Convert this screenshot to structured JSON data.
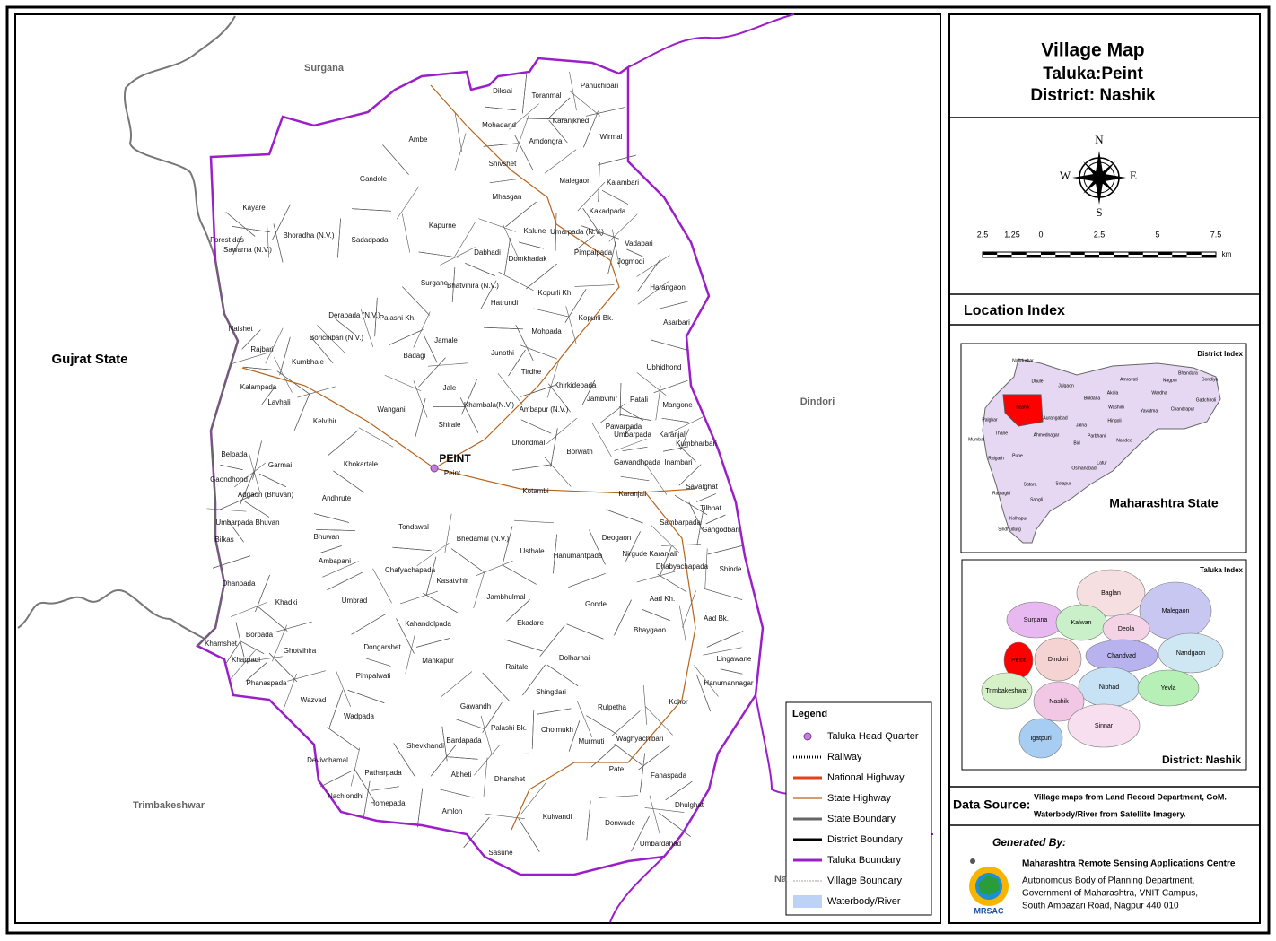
{
  "header": {
    "title": "Village Map",
    "taluka": "Taluka:Peint",
    "district": "District: Nashik"
  },
  "map": {
    "neighbours": [
      "Surgana",
      "Gujrat State",
      "Dindori",
      "Trimbakeshwar",
      "Na"
    ],
    "hq": [
      "PEINT",
      "Peint"
    ],
    "villages": [
      "Diksai",
      "Toranmal",
      "Panuchibari",
      "Mohadand",
      "Karanjkhed",
      "Amdongra",
      "Wirmal",
      "Ambe",
      "Shivshet",
      "Gandole",
      "Malegaon",
      "Kalambari",
      "Mhasgan",
      "Kakadpada",
      "Kayare",
      "Kapurne",
      "Kalune",
      "Umarpada (N.V.)",
      "Vadabari",
      "Forest das",
      "Sawarna (N.V.)",
      "Bhoradha (N.V.)",
      "Sadadpada",
      "Dabhadi",
      "Domkhadak",
      "Pimpalpada",
      "Jogmodi",
      "Surgane",
      "Bhatvihira (N.V.)",
      "Harangaon",
      "Kopurli Kh.",
      "Hatrundi",
      "Derapada (N.V.)",
      "Palashi Kh.",
      "Kopurli Bk.",
      "Asarbari",
      "Naishet",
      "Mohpada",
      "Borichibari (N.V.)",
      "Jamale",
      "Rajbari",
      "Junothi",
      "Badagi",
      "Kumbhale",
      "Ubhidhond",
      "Tirdhe",
      "Kalampada",
      "Khirkidepada",
      "Jale",
      "Lavhali",
      "Jambvihir",
      "Patali",
      "Khambala(N.V.)",
      "Ambapur (N.V.)",
      "Mangone",
      "Wangani",
      "Kelvihir",
      "Shirale",
      "Pawarpada",
      "Umbarpada",
      "Karanjali",
      "Kumbharbari",
      "Dhondmal",
      "Belpada",
      "Borwath",
      "Gawandhpada",
      "Inambari",
      "Garmai",
      "Khokartale",
      "Gaondhond",
      "Kotambi",
      "Karanjali",
      "Savalghat",
      "Adgaon (Bhuvan)",
      "Andhrute",
      "Tilbhat",
      "Umbarpada Bhuvan",
      "Tondawal",
      "Sambarpada",
      "Gangodbari",
      "Bhuwan",
      "Bhedamal (N.V.)",
      "Deogaon",
      "Bilkas",
      "Usthale",
      "Hanumantpada",
      "Nirgude Karanjali",
      "Ambapani",
      "Dhabyachapada",
      "Shinde",
      "Chafyachapada",
      "Kasatvihir",
      "Dhanpada",
      "Jambhulmal",
      "Aad Kh.",
      "Umbrad",
      "Gonde",
      "Khadki",
      "Ekadare",
      "Kahandolpada",
      "Aad Bk.",
      "Bhaygaon",
      "Borpada",
      "Khamshet",
      "Dongarshet",
      "Ghotvihira",
      "Mankapur",
      "Dolharnai",
      "Kharpadi",
      "Lingawane",
      "Raitale",
      "Pimpalwati",
      "Hanumannagar",
      "Phanaspada",
      "Shingdari",
      "Wazvad",
      "Kohor",
      "Rulpetha",
      "Gawandh",
      "Wadpada",
      "Palashi Bk.",
      "Cholmukh",
      "Bardapada",
      "Shevkhandi",
      "Murmuti",
      "Waghyachibari",
      "Devivchamal",
      "Abheti",
      "Pate",
      "Patharpada",
      "Dhanshet",
      "Fanaspada",
      "Nachiondhi",
      "Homepada",
      "Dhulghat",
      "Amlon",
      "Kulwandi",
      "Donwade",
      "Umbardahad",
      "Sasune"
    ]
  },
  "compass": {
    "n": "N",
    "w": "W",
    "e": "E",
    "s": "S"
  },
  "scale": {
    "labels": [
      "2.5",
      "1.25",
      "0",
      "2.5",
      "5",
      "7.5"
    ],
    "unit": "km"
  },
  "location_index": {
    "title": "Location Index",
    "district_index": {
      "title": "District Index",
      "state": "Maharashtra State",
      "districts": [
        "Nandurbar",
        "Dhule",
        "Jalgaon",
        "Buldana",
        "Amravati",
        "Nagpur",
        "Bhandara",
        "Gondiya",
        "Akola",
        "Wardha",
        "Washim",
        "Yavatmal",
        "Chandrapur",
        "Gadchiroli",
        "Hingoli",
        "Nashik",
        "Aurangabad",
        "Jalna",
        "Palghar",
        "Thane",
        "Ahmednagar",
        "Parbhani",
        "Nanded",
        "Bid",
        "Mumbai",
        "Raigarh",
        "Pune",
        "Latur",
        "Osmanabad",
        "Solapur",
        "Satara",
        "Ratnagiri",
        "Sangli",
        "Kolhapur",
        "Sindhudurg"
      ]
    },
    "taluka_index": {
      "title": "Taluka Index",
      "district": "District: Nashik",
      "talukas": [
        "Baglan",
        "Surgana",
        "Kalwan",
        "Malegaon",
        "Deola",
        "Peint",
        "Dindori",
        "Chandvad",
        "Nandgaon",
        "Trimbakeshwar",
        "Niphad",
        "Yevla",
        "Nashik",
        "Sinnar",
        "Igatpuri"
      ]
    }
  },
  "legend": {
    "title": "Legend",
    "items": [
      "Taluka Head Quarter",
      "Railway",
      "National Highway",
      "State Highway",
      "State Boundary",
      "District Boundary",
      "Taluka Boundary",
      "Village Boundary",
      "Waterbody/River"
    ]
  },
  "data_source": {
    "label": "Data Source:",
    "lines": [
      "Village maps from Land Record Department, GoM.",
      "Waterbody/River from Satellite Imagery."
    ]
  },
  "credits": {
    "generated_by": "Generated By:",
    "org": "Maharashtra Remote Sensing Applications Centre",
    "lines": [
      "Autonomous Body of Planning Department,",
      "Government of Maharashtra, VNIT Campus,",
      "South Ambazari Road, Nagpur 440 010"
    ],
    "logo": "MRSAC"
  }
}
